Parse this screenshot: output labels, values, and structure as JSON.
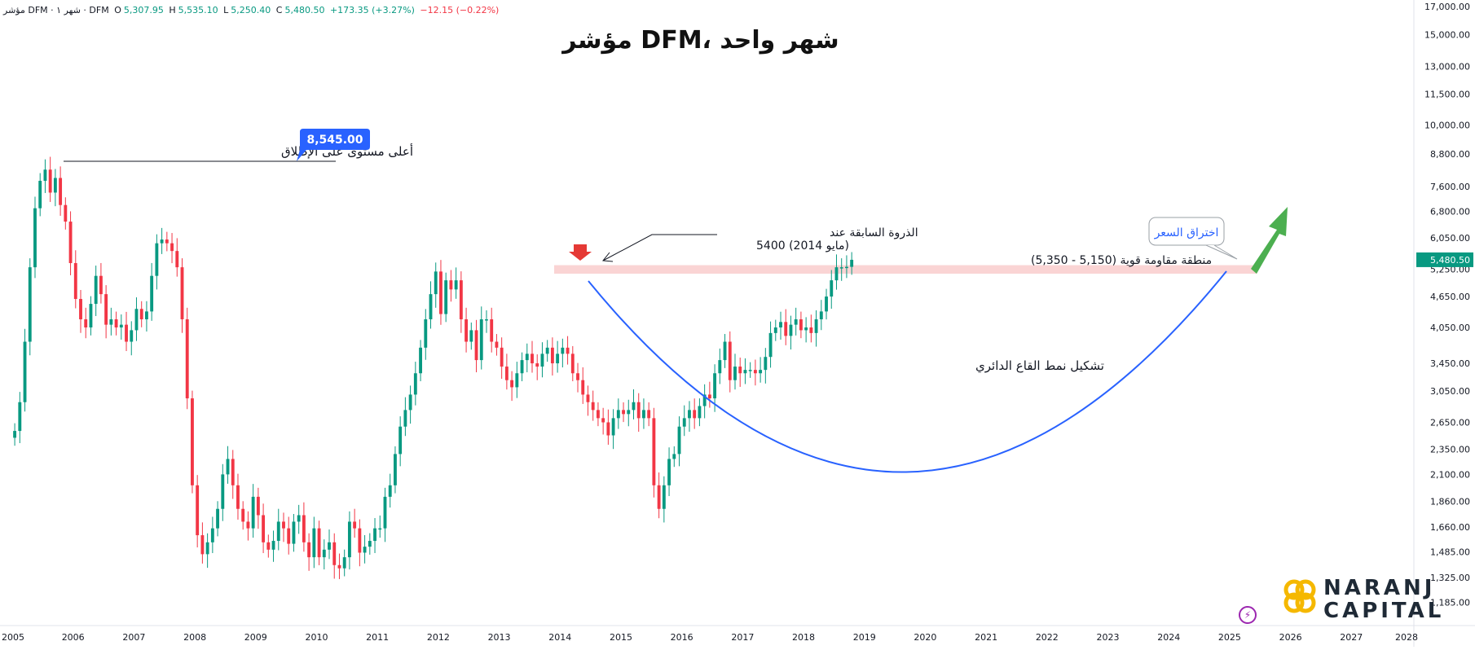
{
  "header": {
    "symbol_label": "مؤشر DFM · شهر ١ · DFM",
    "open_label": "O",
    "open": "5,307.95",
    "high_label": "H",
    "high": "5,535.10",
    "low_label": "L",
    "low": "5,250.40",
    "close_label": "C",
    "close": "5,480.50",
    "change": "+173.35 (+3.27%)",
    "extra_change": "−12.15 (−0.22%)"
  },
  "title": "شهر واحد ،DFM مؤشر",
  "price_badge": "5,480.50",
  "annotations": {
    "ath_label": "أعلى مستوى على الإطلاق",
    "ath_badge": "8,545.00",
    "prev_peak_line1": "الذروة السابقة عند",
    "prev_peak_line2": "5400 (مايو 2014)",
    "resistance_label": "منطقة مقاومة قوية (5,150 - 5,350)",
    "pattern_label": "تشكيل نمط القاع الدائري",
    "breakout_label": "اختراق السعر"
  },
  "logo": {
    "line1": "NARANJ",
    "line2": "CAPITAL"
  },
  "colors": {
    "up": "#089981",
    "down": "#f23645",
    "curve": "#2962ff",
    "zone": "#f8c6c6",
    "arrow": "#4caf50",
    "badge": "#2962ff"
  },
  "chart_data": {
    "type": "candlestick",
    "interval": "1M",
    "scale": "log",
    "ylim": [
      1100,
      17000
    ],
    "xlim": [
      2005.0,
      2028.0
    ],
    "y_ticks": [
      1185,
      1325,
      1485,
      1660,
      1860,
      2100,
      2350,
      2650,
      3050,
      3450,
      4050,
      4650,
      5250,
      6050,
      6800,
      7600,
      8800,
      10000,
      11500,
      13000,
      15000,
      17000
    ],
    "y_tick_labels": [
      "1,185.00",
      "1,325.00",
      "1,485.00",
      "1,660.00",
      "1,860.00",
      "2,100.00",
      "2,350.00",
      "2,650.00",
      "3,050.00",
      "3,450.00",
      "4,050.00",
      "4,650.00",
      "5,250.00",
      "6,050.00",
      "6,800.00",
      "7,600.00",
      "8,800.00",
      "10,000.00",
      "11,500.00",
      "13,000.00",
      "15,000.00",
      "17,000.00"
    ],
    "x_ticks": [
      2005,
      2006,
      2007,
      2008,
      2009,
      2010,
      2011,
      2012,
      2013,
      2014,
      2015,
      2016,
      2017,
      2018,
      2019,
      2020,
      2021,
      2022,
      2023,
      2024,
      2025,
      2026,
      2027,
      2028
    ],
    "x_tick_labels": [
      "2005",
      "2006",
      "2007",
      "2008",
      "2009",
      "2010",
      "2011",
      "2012",
      "2013",
      "2014",
      "2015",
      "2016",
      "2017",
      "2018",
      "2019",
      "2020",
      "2021",
      "2022",
      "2023",
      "2024",
      "2025",
      "2026",
      "2027",
      "2028"
    ],
    "start_year": 2005.0,
    "closes": [
      2550,
      2900,
      3800,
      5300,
      6900,
      7800,
      8200,
      7400,
      7900,
      7000,
      6500,
      5400,
      4600,
      4200,
      4050,
      4500,
      5100,
      4700,
      4100,
      4200,
      4050,
      4100,
      3800,
      4000,
      4400,
      4200,
      4350,
      5100,
      5900,
      6000,
      5900,
      5700,
      5300,
      4200,
      2950,
      2000,
      1600,
      1470,
      1550,
      1650,
      1800,
      2100,
      2250,
      2000,
      1800,
      1700,
      1650,
      1900,
      1750,
      1550,
      1500,
      1560,
      1700,
      1650,
      1540,
      1700,
      1750,
      1550,
      1450,
      1650,
      1450,
      1500,
      1550,
      1400,
      1380,
      1450,
      1700,
      1650,
      1480,
      1520,
      1560,
      1650,
      1650,
      1900,
      2000,
      2300,
      2600,
      2800,
      3000,
      3300,
      3700,
      4200,
      4700,
      5200,
      4300,
      5000,
      4800,
      5000,
      4200,
      3800,
      4000,
      3500,
      4200,
      4200,
      3800,
      3700,
      3400,
      3200,
      3100,
      3300,
      3500,
      3600,
      3450,
      3400,
      3600,
      3700,
      3450,
      3600,
      3700,
      3600,
      3300,
      3200,
      3000,
      2900,
      2800,
      2700,
      2650,
      2500,
      2700,
      2800,
      2750,
      2800,
      2900,
      2700,
      2800,
      2700,
      2000,
      1800,
      2000,
      2250,
      2300,
      2600,
      2700,
      2800,
      2700,
      2850,
      3000,
      2950,
      3300,
      3500,
      3800,
      3200,
      3400,
      3300,
      3350,
      3350,
      3300,
      3350,
      3550,
      3950,
      4050,
      4150,
      3900,
      4100,
      4200,
      4000,
      4050,
      3950,
      4200,
      4350,
      4650,
      5000,
      5300,
      5300,
      5310,
      5480
    ]
  }
}
